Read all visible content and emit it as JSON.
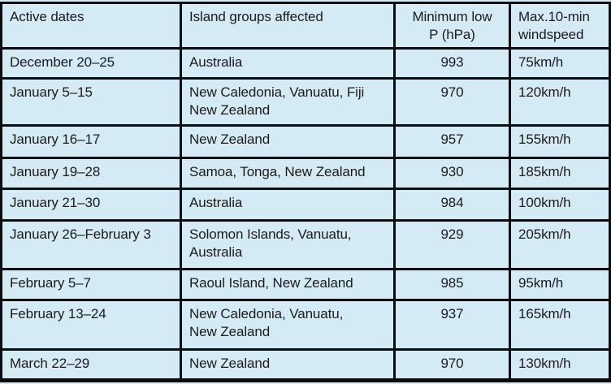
{
  "colors": {
    "table_background": "#d4eaf5",
    "border": "#0a0e13",
    "text": "#1b1b1b"
  },
  "table": {
    "columns": [
      "Active dates",
      "Island groups affected",
      "Minimum low\nP (hPa)",
      "Max.10-min\nwindspeed"
    ],
    "rows": [
      {
        "dates": "December 20–25",
        "islands": "Australia",
        "min_pressure": "993",
        "max_windspeed": "75km/h"
      },
      {
        "dates": "January 5–15",
        "islands": "New Caledonia, Vanuatu, Fiji\nNew Zealand",
        "min_pressure": "970",
        "max_windspeed": "120km/h"
      },
      {
        "dates": "January 16–17",
        "islands": "New Zealand",
        "min_pressure": "957",
        "max_windspeed": "155km/h"
      },
      {
        "dates": "January 19–28",
        "islands": "Samoa, Tonga, New Zealand",
        "min_pressure": "930",
        "max_windspeed": "185km/h"
      },
      {
        "dates": "January 21–30",
        "islands": "Australia",
        "min_pressure": "984",
        "max_windspeed": "100km/h"
      },
      {
        "dates": "January 26–February 3",
        "islands": "Solomon Islands, Vanuatu,\nAustralia",
        "min_pressure": "929",
        "max_windspeed": "205km/h"
      },
      {
        "dates": "February 5–7",
        "islands": "Raoul Island, New Zealand",
        "min_pressure": "985",
        "max_windspeed": "95km/h"
      },
      {
        "dates": "February 13–24",
        "islands": "New Caledonia, Vanuatu,\nNew Zealand",
        "min_pressure": "937",
        "max_windspeed": "165km/h"
      },
      {
        "dates": "March 22–29",
        "islands": "New Zealand",
        "min_pressure": "970",
        "max_windspeed": "130km/h"
      }
    ]
  }
}
